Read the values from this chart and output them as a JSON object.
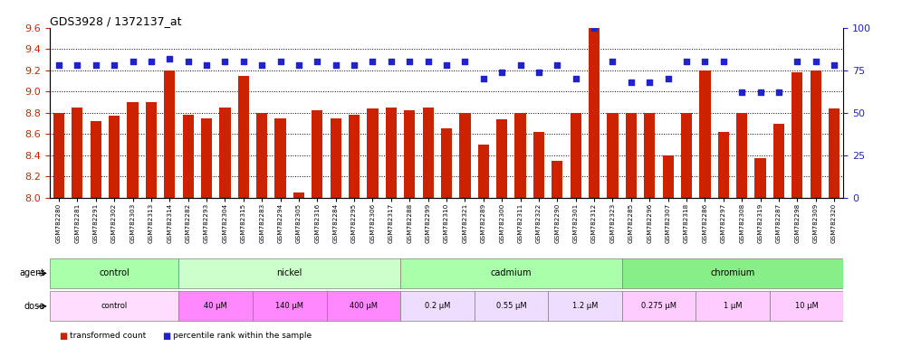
{
  "title": "GDS3928 / 1372137_at",
  "samples": [
    "GSM782280",
    "GSM782281",
    "GSM782291",
    "GSM782302",
    "GSM782303",
    "GSM782313",
    "GSM782314",
    "GSM782282",
    "GSM782293",
    "GSM782304",
    "GSM782315",
    "GSM782283",
    "GSM782294",
    "GSM782305",
    "GSM782316",
    "GSM782284",
    "GSM782295",
    "GSM782306",
    "GSM782317",
    "GSM782288",
    "GSM782299",
    "GSM782310",
    "GSM782321",
    "GSM782289",
    "GSM782300",
    "GSM782311",
    "GSM782322",
    "GSM782290",
    "GSM782301",
    "GSM782312",
    "GSM782323",
    "GSM782285",
    "GSM782296",
    "GSM782307",
    "GSM782318",
    "GSM782286",
    "GSM782297",
    "GSM782308",
    "GSM782319",
    "GSM782287",
    "GSM782298",
    "GSM782309",
    "GSM782320"
  ],
  "bar_values": [
    8.8,
    8.85,
    8.72,
    8.77,
    8.9,
    8.9,
    9.2,
    8.78,
    8.75,
    8.85,
    9.15,
    8.8,
    8.75,
    8.05,
    8.82,
    8.75,
    8.78,
    8.84,
    8.85,
    8.82,
    8.85,
    8.65,
    8.8,
    8.5,
    8.74,
    8.8,
    8.62,
    8.35,
    8.8,
    9.6,
    8.8,
    8.8,
    8.8,
    8.4,
    8.8,
    9.2,
    8.62,
    8.8,
    8.37,
    8.7,
    9.18,
    9.2,
    8.84
  ],
  "percentile_values": [
    78,
    78,
    78,
    78,
    80,
    80,
    82,
    80,
    78,
    80,
    80,
    78,
    80,
    78,
    80,
    78,
    78,
    80,
    80,
    80,
    80,
    78,
    80,
    70,
    74,
    78,
    74,
    78,
    70,
    100,
    80,
    68,
    68,
    70,
    80,
    80,
    80,
    62,
    62,
    62,
    80,
    80,
    78
  ],
  "bar_color": "#cc2200",
  "dot_color": "#2222cc",
  "ylim_left": [
    8.0,
    9.6
  ],
  "ylim_right": [
    0,
    100
  ],
  "yticks_left": [
    8.0,
    8.2,
    8.4,
    8.6,
    8.8,
    9.0,
    9.2,
    9.4,
    9.6
  ],
  "yticks_right": [
    0,
    25,
    50,
    75,
    100
  ],
  "y_gridlines": [
    8.2,
    8.4,
    8.6,
    8.8,
    9.0,
    9.2,
    9.4
  ],
  "agent_groups": [
    {
      "label": "control",
      "start": 0,
      "end": 7,
      "color": "#aaffaa"
    },
    {
      "label": "nickel",
      "start": 7,
      "end": 19,
      "color": "#ccffcc"
    },
    {
      "label": "cadmium",
      "start": 19,
      "end": 31,
      "color": "#aaffaa"
    },
    {
      "label": "chromium",
      "start": 31,
      "end": 43,
      "color": "#88ee88"
    }
  ],
  "dose_groups": [
    {
      "label": "control",
      "start": 0,
      "end": 7,
      "color": "#ffddff"
    },
    {
      "label": "40 μM",
      "start": 7,
      "end": 11,
      "color": "#ff88ff"
    },
    {
      "label": "140 μM",
      "start": 11,
      "end": 15,
      "color": "#ff88ff"
    },
    {
      "label": "400 μM",
      "start": 15,
      "end": 19,
      "color": "#ff88ff"
    },
    {
      "label": "0.2 μM",
      "start": 19,
      "end": 23,
      "color": "#eeddff"
    },
    {
      "label": "0.55 μM",
      "start": 23,
      "end": 27,
      "color": "#eeddff"
    },
    {
      "label": "1.2 μM",
      "start": 27,
      "end": 31,
      "color": "#eeddff"
    },
    {
      "label": "0.275 μM",
      "start": 31,
      "end": 35,
      "color": "#ffccff"
    },
    {
      "label": "1 μM",
      "start": 35,
      "end": 39,
      "color": "#ffccff"
    },
    {
      "label": "10 μM",
      "start": 39,
      "end": 43,
      "color": "#ffccff"
    }
  ]
}
